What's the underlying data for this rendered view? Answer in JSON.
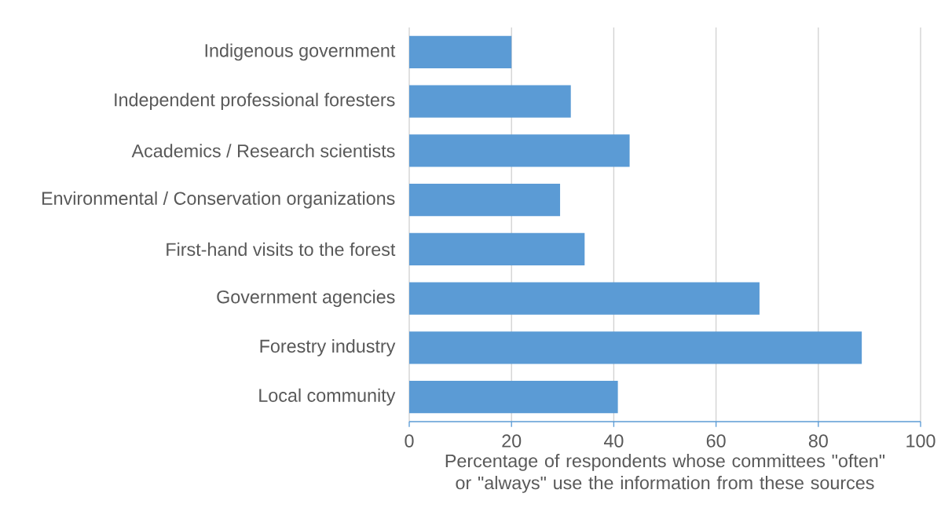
{
  "chart_data": {
    "type": "bar",
    "orientation": "horizontal",
    "categories": [
      "Indigenous government",
      "Independent professional foresters",
      "Academics / Research scientists",
      "Environmental / Conservation organizations",
      "First-hand visits to the forest",
      "Government agencies",
      "Forestry industry",
      "Local community"
    ],
    "values": [
      20.0,
      31.6,
      43.1,
      29.5,
      34.3,
      68.5,
      88.5,
      40.8
    ],
    "color": "#5b9bd5",
    "xlabel": "Percentage of respondents whose committees \"often\" or \"always\" use the information from these sources",
    "xlim": [
      0,
      100
    ],
    "xticks": [
      0,
      20,
      40,
      60,
      80,
      100
    ],
    "grid": "x"
  }
}
